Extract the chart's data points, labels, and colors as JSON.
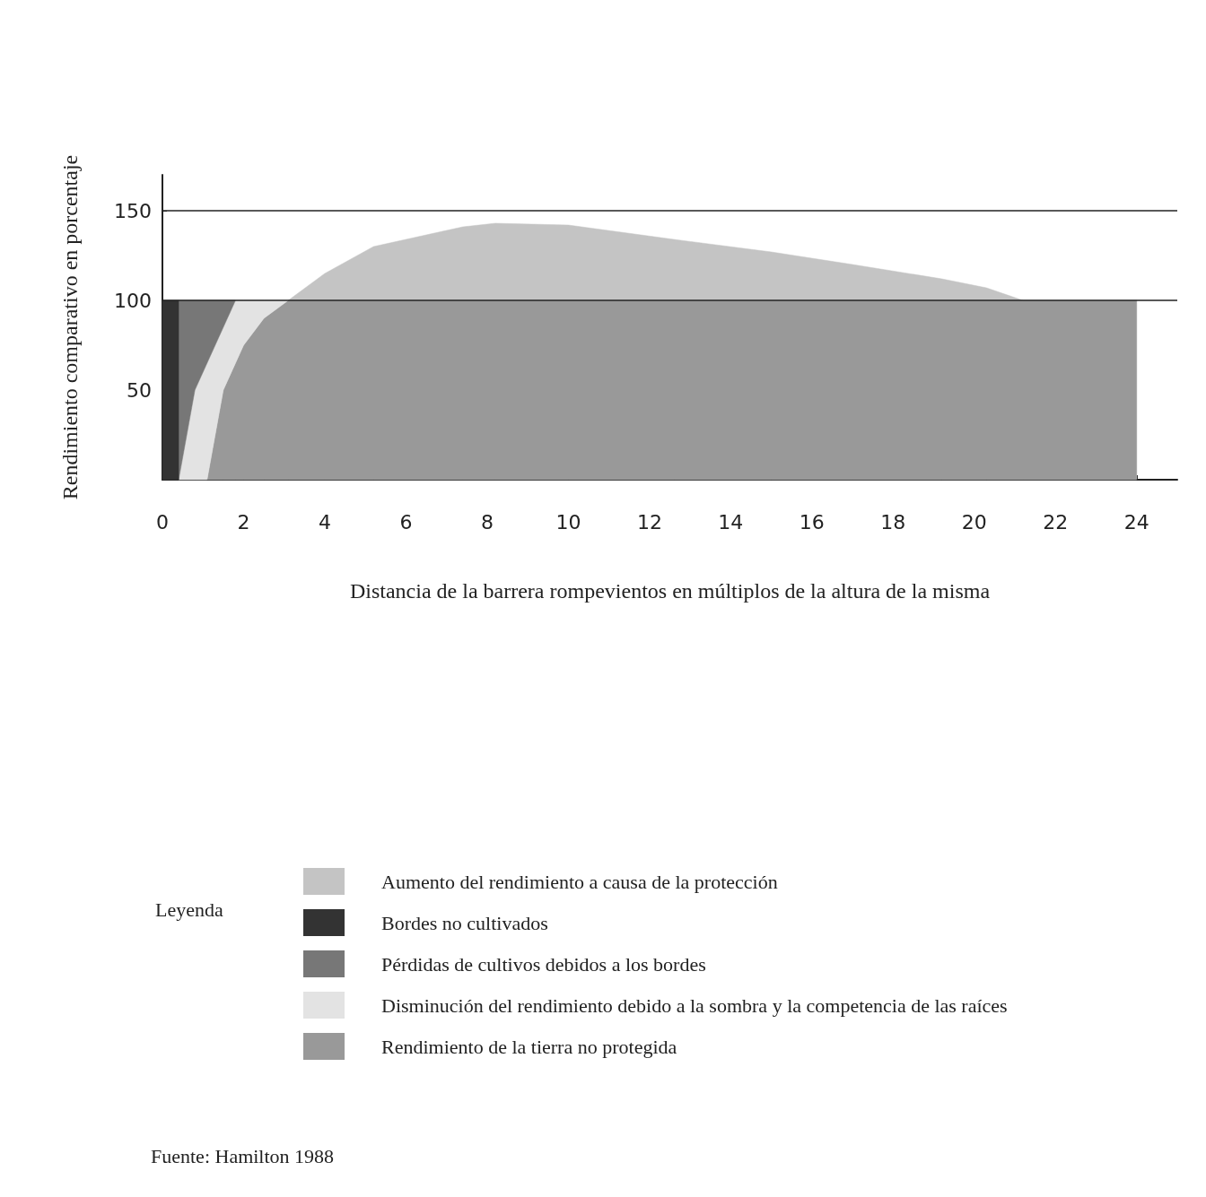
{
  "chart_data": {
    "type": "area",
    "stacked": true,
    "xlabel": "Distancia de la barrera rompevientos en múltiplos de la altura de la misma",
    "ylabel": "Rendimiento comparativo en porcentaje",
    "legend_title": "Leyenda",
    "x": [
      0,
      0.4,
      0.4,
      0.8,
      1.1,
      1.5,
      1.8,
      2,
      2.5,
      3.1,
      4,
      5.2,
      7.4,
      8.2,
      10,
      12.6,
      15,
      17,
      19.2,
      20.3,
      21.2,
      24
    ],
    "series": [
      {
        "name": "Rendimiento de la tierra no protegida",
        "color": "#999999",
        "values": [
          null,
          null,
          null,
          null,
          0,
          50,
          65,
          75,
          90,
          100,
          100,
          100,
          100,
          100,
          100,
          100,
          100,
          100,
          100,
          100,
          100,
          100
        ]
      },
      {
        "name": "Disminución del rendimiento debido a la sombra y la competencia de las raíces",
        "color": "#e3e3e3",
        "values": [
          null,
          null,
          0,
          50,
          65,
          35,
          35,
          25,
          10,
          0,
          null,
          null,
          null,
          null,
          null,
          null,
          null,
          null,
          null,
          null,
          null,
          null
        ]
      },
      {
        "name": "Pérdidas de cultivos debidos a los bordes",
        "color": "#777777",
        "values": [
          null,
          null,
          100,
          50,
          35,
          15,
          0,
          null,
          null,
          null,
          null,
          null,
          null,
          null,
          null,
          null,
          null,
          null,
          null,
          null,
          null,
          null
        ]
      },
      {
        "name": "Bordes no cultivados",
        "color": "#333333",
        "values": [
          100,
          100,
          null,
          null,
          null,
          null,
          null,
          null,
          null,
          null,
          null,
          null,
          null,
          null,
          null,
          null,
          null,
          null,
          null,
          null,
          null,
          null
        ]
      },
      {
        "name": "Aumento del rendimiento a causa de la protección",
        "color": "#c4c4c4",
        "values": [
          null,
          null,
          null,
          null,
          null,
          null,
          null,
          null,
          null,
          0,
          15,
          30,
          41,
          43,
          42,
          34,
          27,
          20,
          12,
          7,
          0,
          null
        ]
      }
    ],
    "xlim": [
      0,
      25
    ],
    "xticks": [
      0,
      2,
      4,
      6,
      8,
      10,
      12,
      14,
      16,
      18,
      20,
      22,
      24
    ],
    "ylim": [
      0,
      170
    ],
    "yticks": [
      50,
      100,
      150
    ],
    "ref_lines": [
      {
        "axis": "y",
        "value": 100,
        "label": null
      },
      {
        "axis": "y",
        "value": 150,
        "label": null
      }
    ],
    "legend": "bottom",
    "annotations": [
      "Fuente: Hamilton 1988"
    ]
  }
}
